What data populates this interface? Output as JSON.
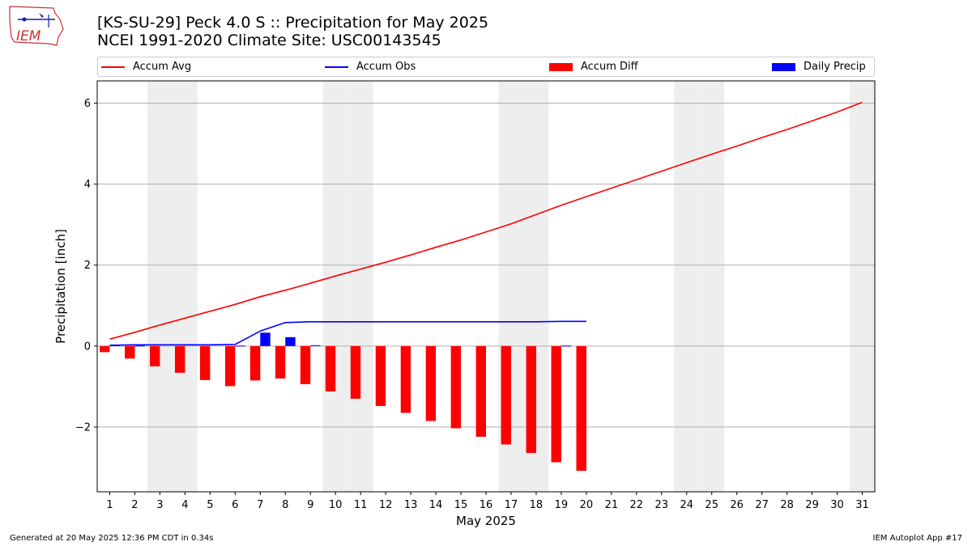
{
  "logo": {
    "text": "IEM"
  },
  "title_line1": "[KS-SU-29] Peck 4.0 S :: Precipitation for May 2025",
  "title_line2": "NCEI 1991-2020 Climate Site: USC00143545",
  "footer": {
    "left": "Generated at 20 May 2025 12:36 PM CDT in 0.34s",
    "right": "IEM Autoplot App #17"
  },
  "colors": {
    "avg": "#ff0000",
    "obs": "#0000ff",
    "diff": "#ff0000",
    "precip": "#0000ff",
    "weekend": "#eeeeee",
    "grid": "#b0b0b0"
  },
  "chart_data": {
    "type": "bar",
    "xlabel": "May 2025",
    "ylabel": "Precipitation [inch]",
    "xlim": [
      0.5,
      31.5
    ],
    "ylim": [
      -3.6,
      6.55
    ],
    "yticks": [
      -2,
      0,
      2,
      4,
      6
    ],
    "ytick_labels": [
      "−2",
      "0",
      "2",
      "4",
      "6"
    ],
    "days": [
      1,
      2,
      3,
      4,
      5,
      6,
      7,
      8,
      9,
      10,
      11,
      12,
      13,
      14,
      15,
      16,
      17,
      18,
      19,
      20,
      21,
      22,
      23,
      24,
      25,
      26,
      27,
      28,
      29,
      30,
      31
    ],
    "weekend_days": [
      3,
      4,
      10,
      11,
      17,
      18,
      24,
      25,
      31
    ],
    "grid": true,
    "legend": {
      "placement": "top",
      "entries": [
        "Accum Avg",
        "Accum Obs",
        "Accum Diff",
        "Daily Precip"
      ]
    },
    "series": [
      {
        "name": "Accum Avg",
        "type": "line",
        "values": [
          0.17,
          0.34,
          0.52,
          0.69,
          0.86,
          1.03,
          1.22,
          1.38,
          1.55,
          1.73,
          1.9,
          2.07,
          2.25,
          2.44,
          2.62,
          2.82,
          3.02,
          3.25,
          3.48,
          3.69,
          3.9,
          4.11,
          4.32,
          4.53,
          4.74,
          4.94,
          5.15,
          5.35,
          5.56,
          5.78,
          6.02
        ]
      },
      {
        "name": "Accum Obs",
        "type": "line",
        "values": [
          0.02,
          0.03,
          0.03,
          0.03,
          0.03,
          0.04,
          0.37,
          0.58,
          0.6,
          0.6,
          0.6,
          0.6,
          0.6,
          0.6,
          0.6,
          0.6,
          0.6,
          0.6,
          0.61,
          0.61
        ]
      },
      {
        "name": "Accum Diff",
        "type": "bar",
        "values": [
          -0.15,
          -0.31,
          -0.5,
          -0.66,
          -0.84,
          -0.99,
          -0.85,
          -0.8,
          -0.94,
          -1.12,
          -1.3,
          -1.48,
          -1.65,
          -1.85,
          -2.03,
          -2.24,
          -2.43,
          -2.64,
          -2.87,
          -3.08
        ]
      },
      {
        "name": "Daily Precip",
        "type": "bar",
        "values": [
          0.02,
          0.01,
          0.0,
          0.0,
          0.0,
          0.01,
          0.33,
          0.22,
          0.02,
          0.0,
          0.0,
          0.0,
          0.0,
          0.0,
          0.0,
          0.0,
          0.0,
          0.0,
          0.01,
          0.0
        ]
      }
    ]
  }
}
